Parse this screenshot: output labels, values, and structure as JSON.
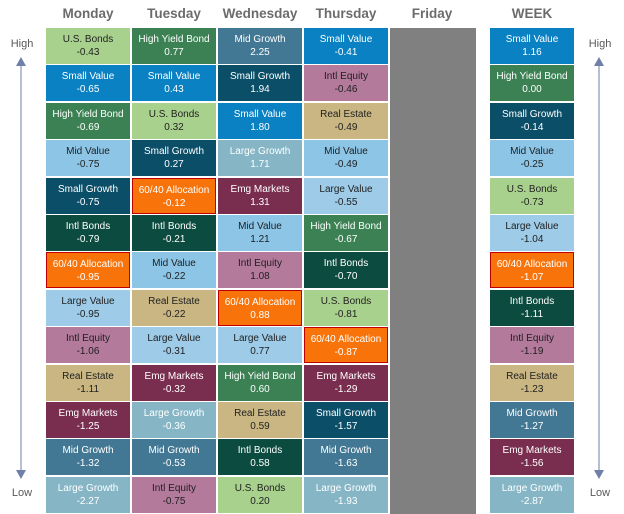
{
  "headers": [
    "Monday",
    "Tuesday",
    "Wednesday",
    "Thursday",
    "Friday",
    "WEEK"
  ],
  "labels": {
    "high": "High",
    "low": "Low"
  },
  "highlight": "60/40 Allocation",
  "colors": {
    "U.S. Bonds": {
      "bg": "#a9d18e",
      "fg": "#1f1f1f"
    },
    "Small Value": {
      "bg": "#0a81c2",
      "fg": "#ffffff"
    },
    "High Yield Bond": {
      "bg": "#3b8153",
      "fg": "#ffffff"
    },
    "Mid Value": {
      "bg": "#8cc5e6",
      "fg": "#1f1f1f"
    },
    "Small Growth": {
      "bg": "#0b4e68",
      "fg": "#ffffff"
    },
    "Intl Bonds": {
      "bg": "#0c4b3f",
      "fg": "#ffffff"
    },
    "60/40 Allocation": {
      "bg": "#f8740b",
      "fg": "#ffffff"
    },
    "Large Value": {
      "bg": "#9dcbe8",
      "fg": "#1f1f1f"
    },
    "Intl Equity": {
      "bg": "#b37a9c",
      "fg": "#1f1f1f"
    },
    "Real Estate": {
      "bg": "#c9b682",
      "fg": "#1f1f1f"
    },
    "Emg Markets": {
      "bg": "#7a2e4f",
      "fg": "#ffffff"
    },
    "Mid Growth": {
      "bg": "#427894",
      "fg": "#ffffff"
    },
    "Large Growth": {
      "bg": "#86b6c6",
      "fg": "#ffffff"
    }
  },
  "chart_data": {
    "type": "table",
    "columns": [
      {
        "day": "Monday",
        "rows": [
          {
            "name": "U.S. Bonds",
            "value": "-0.43"
          },
          {
            "name": "Small Value",
            "value": "-0.65"
          },
          {
            "name": "High Yield Bond",
            "value": "-0.69"
          },
          {
            "name": "Mid Value",
            "value": "-0.75"
          },
          {
            "name": "Small Growth",
            "value": "-0.75"
          },
          {
            "name": "Intl Bonds",
            "value": "-0.79"
          },
          {
            "name": "60/40 Allocation",
            "value": "-0.95"
          },
          {
            "name": "Large Value",
            "value": "-0.95"
          },
          {
            "name": "Intl Equity",
            "value": "-1.06"
          },
          {
            "name": "Real Estate",
            "value": "-1.11"
          },
          {
            "name": "Emg Markets",
            "value": "-1.25"
          },
          {
            "name": "Mid Growth",
            "value": "-1.32"
          },
          {
            "name": "Large Growth",
            "value": "-2.27"
          }
        ]
      },
      {
        "day": "Tuesday",
        "rows": [
          {
            "name": "High Yield Bond",
            "value": "0.77"
          },
          {
            "name": "Small Value",
            "value": "0.43"
          },
          {
            "name": "U.S. Bonds",
            "value": "0.32"
          },
          {
            "name": "Small Growth",
            "value": "0.27"
          },
          {
            "name": "60/40 Allocation",
            "value": "-0.12"
          },
          {
            "name": "Intl Bonds",
            "value": "-0.21"
          },
          {
            "name": "Mid Value",
            "value": "-0.22"
          },
          {
            "name": "Real Estate",
            "value": "-0.22"
          },
          {
            "name": "Large Value",
            "value": "-0.31"
          },
          {
            "name": "Emg Markets",
            "value": "-0.32"
          },
          {
            "name": "Large Growth",
            "value": "-0.36"
          },
          {
            "name": "Mid Growth",
            "value": "-0.53"
          },
          {
            "name": "Intl Equity",
            "value": "-0.75"
          }
        ]
      },
      {
        "day": "Wednesday",
        "rows": [
          {
            "name": "Mid Growth",
            "value": "2.25"
          },
          {
            "name": "Small Growth",
            "value": "1.94"
          },
          {
            "name": "Small Value",
            "value": "1.80"
          },
          {
            "name": "Large Growth",
            "value": "1.71"
          },
          {
            "name": "Emg Markets",
            "value": "1.31"
          },
          {
            "name": "Mid Value",
            "value": "1.21"
          },
          {
            "name": "Intl Equity",
            "value": "1.08"
          },
          {
            "name": "60/40 Allocation",
            "value": "0.88"
          },
          {
            "name": "Large Value",
            "value": "0.77"
          },
          {
            "name": "High Yield Bond",
            "value": "0.60"
          },
          {
            "name": "Real Estate",
            "value": "0.59"
          },
          {
            "name": "Intl Bonds",
            "value": "0.58"
          },
          {
            "name": "U.S. Bonds",
            "value": "0.20"
          }
        ]
      },
      {
        "day": "Thursday",
        "rows": [
          {
            "name": "Small Value",
            "value": "-0.41"
          },
          {
            "name": "Intl Equity",
            "value": "-0.46"
          },
          {
            "name": "Real Estate",
            "value": "-0.49"
          },
          {
            "name": "Mid Value",
            "value": "-0.49"
          },
          {
            "name": "Large Value",
            "value": "-0.55"
          },
          {
            "name": "High Yield Bond",
            "value": "-0.67"
          },
          {
            "name": "Intl Bonds",
            "value": "-0.70"
          },
          {
            "name": "U.S. Bonds",
            "value": "-0.81"
          },
          {
            "name": "60/40 Allocation",
            "value": "-0.87"
          },
          {
            "name": "Emg Markets",
            "value": "-1.29"
          },
          {
            "name": "Small Growth",
            "value": "-1.57"
          },
          {
            "name": "Mid Growth",
            "value": "-1.63"
          },
          {
            "name": "Large Growth",
            "value": "-1.93"
          }
        ]
      },
      {
        "day": "Friday",
        "rows": []
      },
      {
        "day": "WEEK",
        "rows": [
          {
            "name": "Small Value",
            "value": "1.16"
          },
          {
            "name": "High Yield Bond",
            "value": "0.00"
          },
          {
            "name": "Small Growth",
            "value": "-0.14"
          },
          {
            "name": "Mid Value",
            "value": "-0.25"
          },
          {
            "name": "U.S. Bonds",
            "value": "-0.73"
          },
          {
            "name": "Large Value",
            "value": "-1.04"
          },
          {
            "name": "60/40 Allocation",
            "value": "-1.07"
          },
          {
            "name": "Intl Bonds",
            "value": "-1.11"
          },
          {
            "name": "Intl Equity",
            "value": "-1.19"
          },
          {
            "name": "Real Estate",
            "value": "-1.23"
          },
          {
            "name": "Mid Growth",
            "value": "-1.27"
          },
          {
            "name": "Emg Markets",
            "value": "-1.56"
          },
          {
            "name": "Large Growth",
            "value": "-2.87"
          }
        ]
      }
    ]
  }
}
